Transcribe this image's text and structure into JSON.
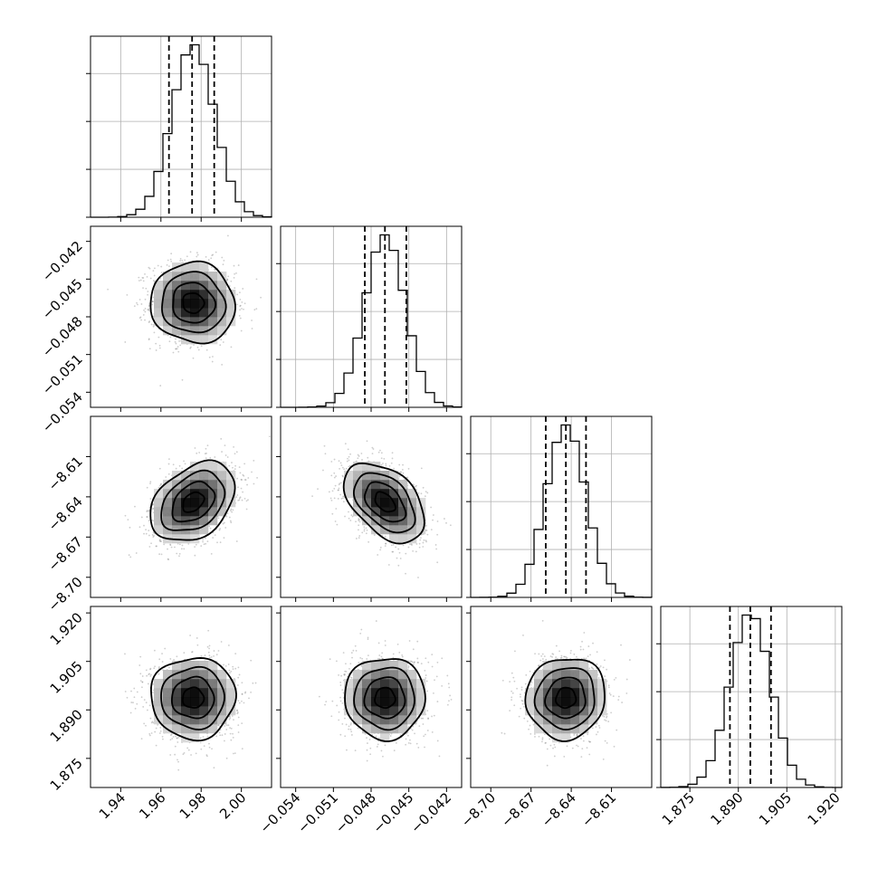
{
  "chart_data": {
    "type": "corner",
    "title": "",
    "grid": true,
    "parameters": [
      {
        "label": "",
        "range": [
          1.925,
          2.015
        ],
        "ticks": [
          1.94,
          1.96,
          1.98,
          2.0
        ],
        "tick_labels": [
          "1.94",
          "1.96",
          "1.98",
          "2.00"
        ],
        "quantiles": [
          1.964,
          1.9755,
          1.9865
        ],
        "mean": 1.976,
        "std": 0.0105,
        "hist_ticks": [
          0.0,
          0.27,
          0.54,
          0.81
        ]
      },
      {
        "label": "",
        "range": [
          -0.0552,
          -0.0408
        ],
        "ticks": [
          -0.054,
          -0.051,
          -0.048,
          -0.045,
          -0.042
        ],
        "tick_labels": [
          "−0.054",
          "−0.051",
          "−0.048",
          "−0.045",
          "−0.042"
        ],
        "quantiles": [
          -0.0485,
          -0.0469,
          -0.0452
        ],
        "mean": -0.0469,
        "std": 0.0016,
        "hist_ticks": [
          0.0,
          0.27,
          0.54,
          0.81
        ]
      },
      {
        "label": "",
        "range": [
          -8.715,
          -8.58
        ],
        "ticks": [
          -8.7,
          -8.67,
          -8.64,
          -8.61
        ],
        "tick_labels": [
          "−8.70",
          "−8.67",
          "−8.64",
          "−8.61"
        ],
        "quantiles": [
          -8.659,
          -8.644,
          -8.629
        ],
        "mean": -8.644,
        "std": 0.0148,
        "hist_ticks": [
          0.0,
          0.27,
          0.54,
          0.81
        ]
      },
      {
        "label": "",
        "range": [
          1.866,
          1.922
        ],
        "ticks": [
          1.875,
          1.89,
          1.905,
          1.92
        ],
        "tick_labels": [
          "1.875",
          "1.890",
          "1.905",
          "1.920"
        ],
        "quantiles": [
          1.8874,
          1.8937,
          1.9001
        ],
        "mean": 1.8937,
        "std": 0.0063,
        "hist_ticks": [
          0.0,
          0.27,
          0.54,
          0.81
        ]
      }
    ],
    "correlations": [
      {
        "i": 1,
        "j": 0,
        "rho": -0.05
      },
      {
        "i": 2,
        "j": 0,
        "rho": 0.35
      },
      {
        "i": 2,
        "j": 1,
        "rho": -0.45
      },
      {
        "i": 3,
        "j": 0,
        "rho": 0.0
      },
      {
        "i": 3,
        "j": 1,
        "rho": 0.0
      },
      {
        "i": 3,
        "j": 2,
        "rho": 0.05
      }
    ],
    "contour_levels_sigma": [
      0.5,
      1.0,
      1.5,
      2.0
    ],
    "n_samples_shown": 1400,
    "hist_bins": 20
  }
}
